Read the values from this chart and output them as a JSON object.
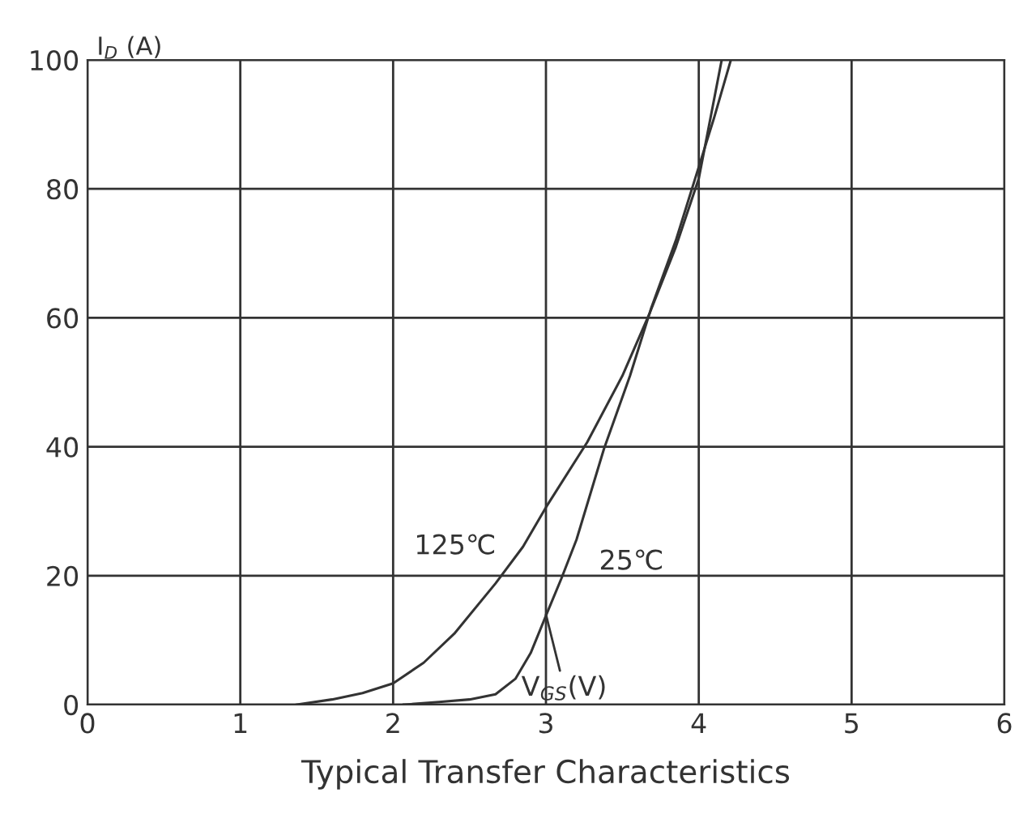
{
  "chart_data": {
    "type": "line",
    "title": "Typical Transfer Characteristics",
    "xlabel": "V$_{GS}$(V)",
    "ylabel": "I$_{D}$ (A)",
    "xlim": [
      0,
      6
    ],
    "ylim": [
      0,
      100
    ],
    "xticks": [
      0,
      1,
      2,
      3,
      4,
      5,
      6
    ],
    "yticks": [
      0,
      20,
      40,
      60,
      80,
      100
    ],
    "grid": true,
    "marker": "none",
    "line_style": "solid",
    "series": [
      {
        "name": "125℃",
        "color": "#333333",
        "x": [
          1.37,
          1.6,
          1.8,
          2.0,
          2.2,
          2.4,
          2.67,
          2.85,
          3.0,
          3.27,
          3.5,
          3.68,
          3.85,
          4.0,
          4.15
        ],
        "values": [
          0,
          0.8,
          1.8,
          3.3,
          6.5,
          11,
          18.8,
          24.5,
          30.6,
          40.7,
          51,
          60.8,
          71,
          81.6,
          100
        ]
      },
      {
        "name": "25℃",
        "color": "#333333",
        "x": [
          2.07,
          2.3,
          2.5,
          2.67,
          2.8,
          2.9,
          3.0,
          3.1,
          3.2,
          3.38,
          3.55,
          3.69,
          3.85,
          4.0,
          4.1,
          4.21
        ],
        "values": [
          0,
          0.4,
          0.8,
          1.6,
          4,
          8,
          13.8,
          19.5,
          25.6,
          39.7,
          51,
          61.6,
          72,
          83.4,
          91,
          100
        ]
      }
    ]
  }
}
